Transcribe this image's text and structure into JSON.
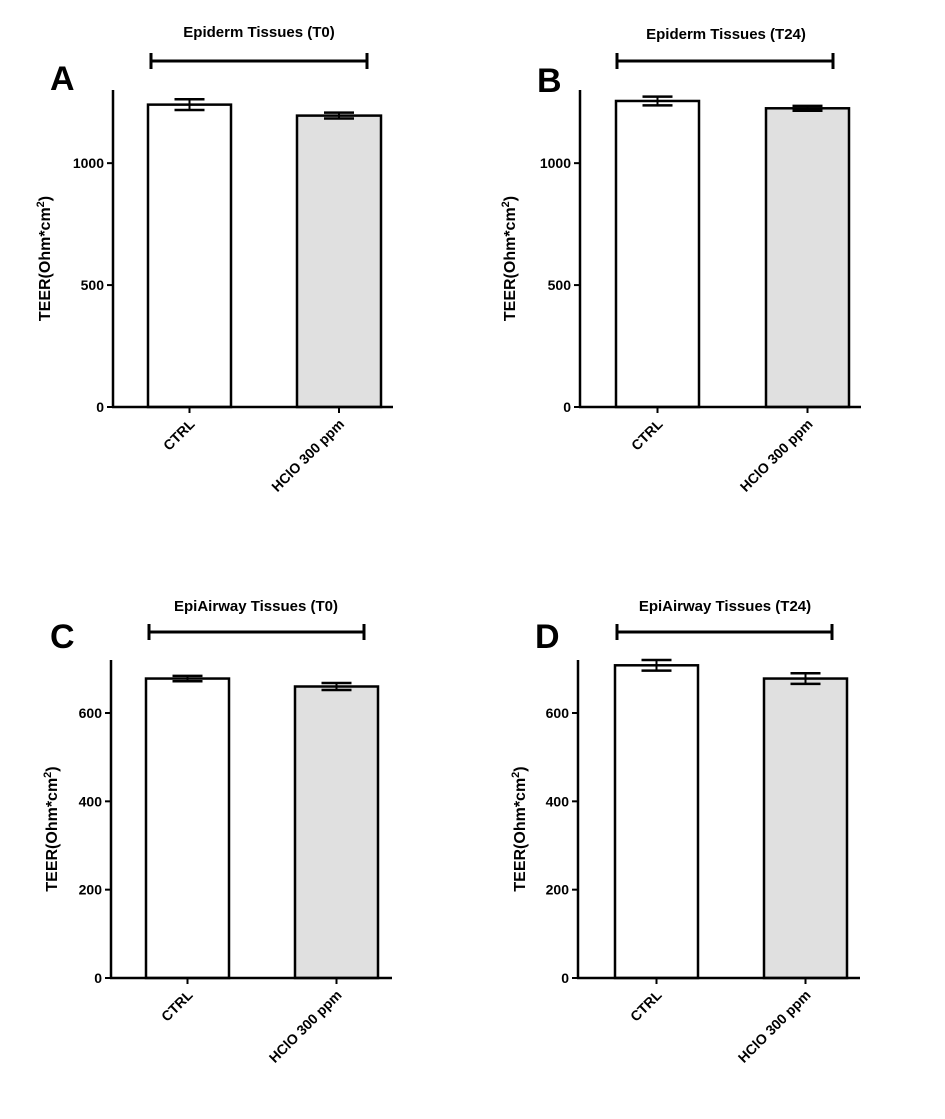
{
  "chart_data": [
    {
      "type": "bar",
      "panel": "A",
      "title": "Epiderm Tissues (T0)",
      "ylabel": "TEER(Ohm*cm2)",
      "ylabel_main": "TEER(Ohm*cm",
      "ylabel_sup": "2",
      "ylabel_end": ")",
      "xlabel": "",
      "categories": [
        "CTRL",
        "HClO 300 ppm"
      ],
      "values": [
        1240,
        1195
      ],
      "errors": [
        22,
        12
      ],
      "ylim": [
        0,
        1300
      ],
      "yticks": [
        0,
        500,
        1000
      ],
      "bar_colors": [
        "#ffffff",
        "#e0e0e0"
      ]
    },
    {
      "type": "bar",
      "panel": "B",
      "title": "Epiderm Tissues (T24)",
      "ylabel": "TEER(Ohm*cm2)",
      "ylabel_main": "TEER(Ohm*cm",
      "ylabel_sup": "2",
      "ylabel_end": ")",
      "xlabel": "",
      "categories": [
        "CTRL",
        "HClO 300 ppm"
      ],
      "values": [
        1255,
        1225
      ],
      "errors": [
        18,
        10
      ],
      "ylim": [
        0,
        1300
      ],
      "yticks": [
        0,
        500,
        1000
      ],
      "bar_colors": [
        "#ffffff",
        "#e0e0e0"
      ]
    },
    {
      "type": "bar",
      "panel": "C",
      "title": "EpiAirway Tissues (T0)",
      "ylabel": "TEER(Ohm*cm2)",
      "ylabel_main": "TEER(Ohm*cm",
      "ylabel_sup": "2",
      "ylabel_end": ")",
      "xlabel": "",
      "categories": [
        "CTRL",
        "HClO 300 ppm"
      ],
      "values": [
        678,
        660
      ],
      "errors": [
        6,
        8
      ],
      "ylim": [
        0,
        720
      ],
      "yticks": [
        0,
        200,
        400,
        600
      ],
      "bar_colors": [
        "#ffffff",
        "#e0e0e0"
      ]
    },
    {
      "type": "bar",
      "panel": "D",
      "title": "EpiAirway Tissues (T24)",
      "ylabel": "TEER(Ohm*cm2)",
      "ylabel_main": "TEER(Ohm*cm",
      "ylabel_sup": "2",
      "ylabel_end": ")",
      "xlabel": "",
      "categories": [
        "CTRL",
        "HClO 300 ppm"
      ],
      "values": [
        708,
        678
      ],
      "errors": [
        12,
        12
      ],
      "ylim": [
        0,
        720
      ],
      "yticks": [
        0,
        200,
        400,
        600
      ],
      "bar_colors": [
        "#ffffff",
        "#e0e0e0"
      ]
    }
  ]
}
